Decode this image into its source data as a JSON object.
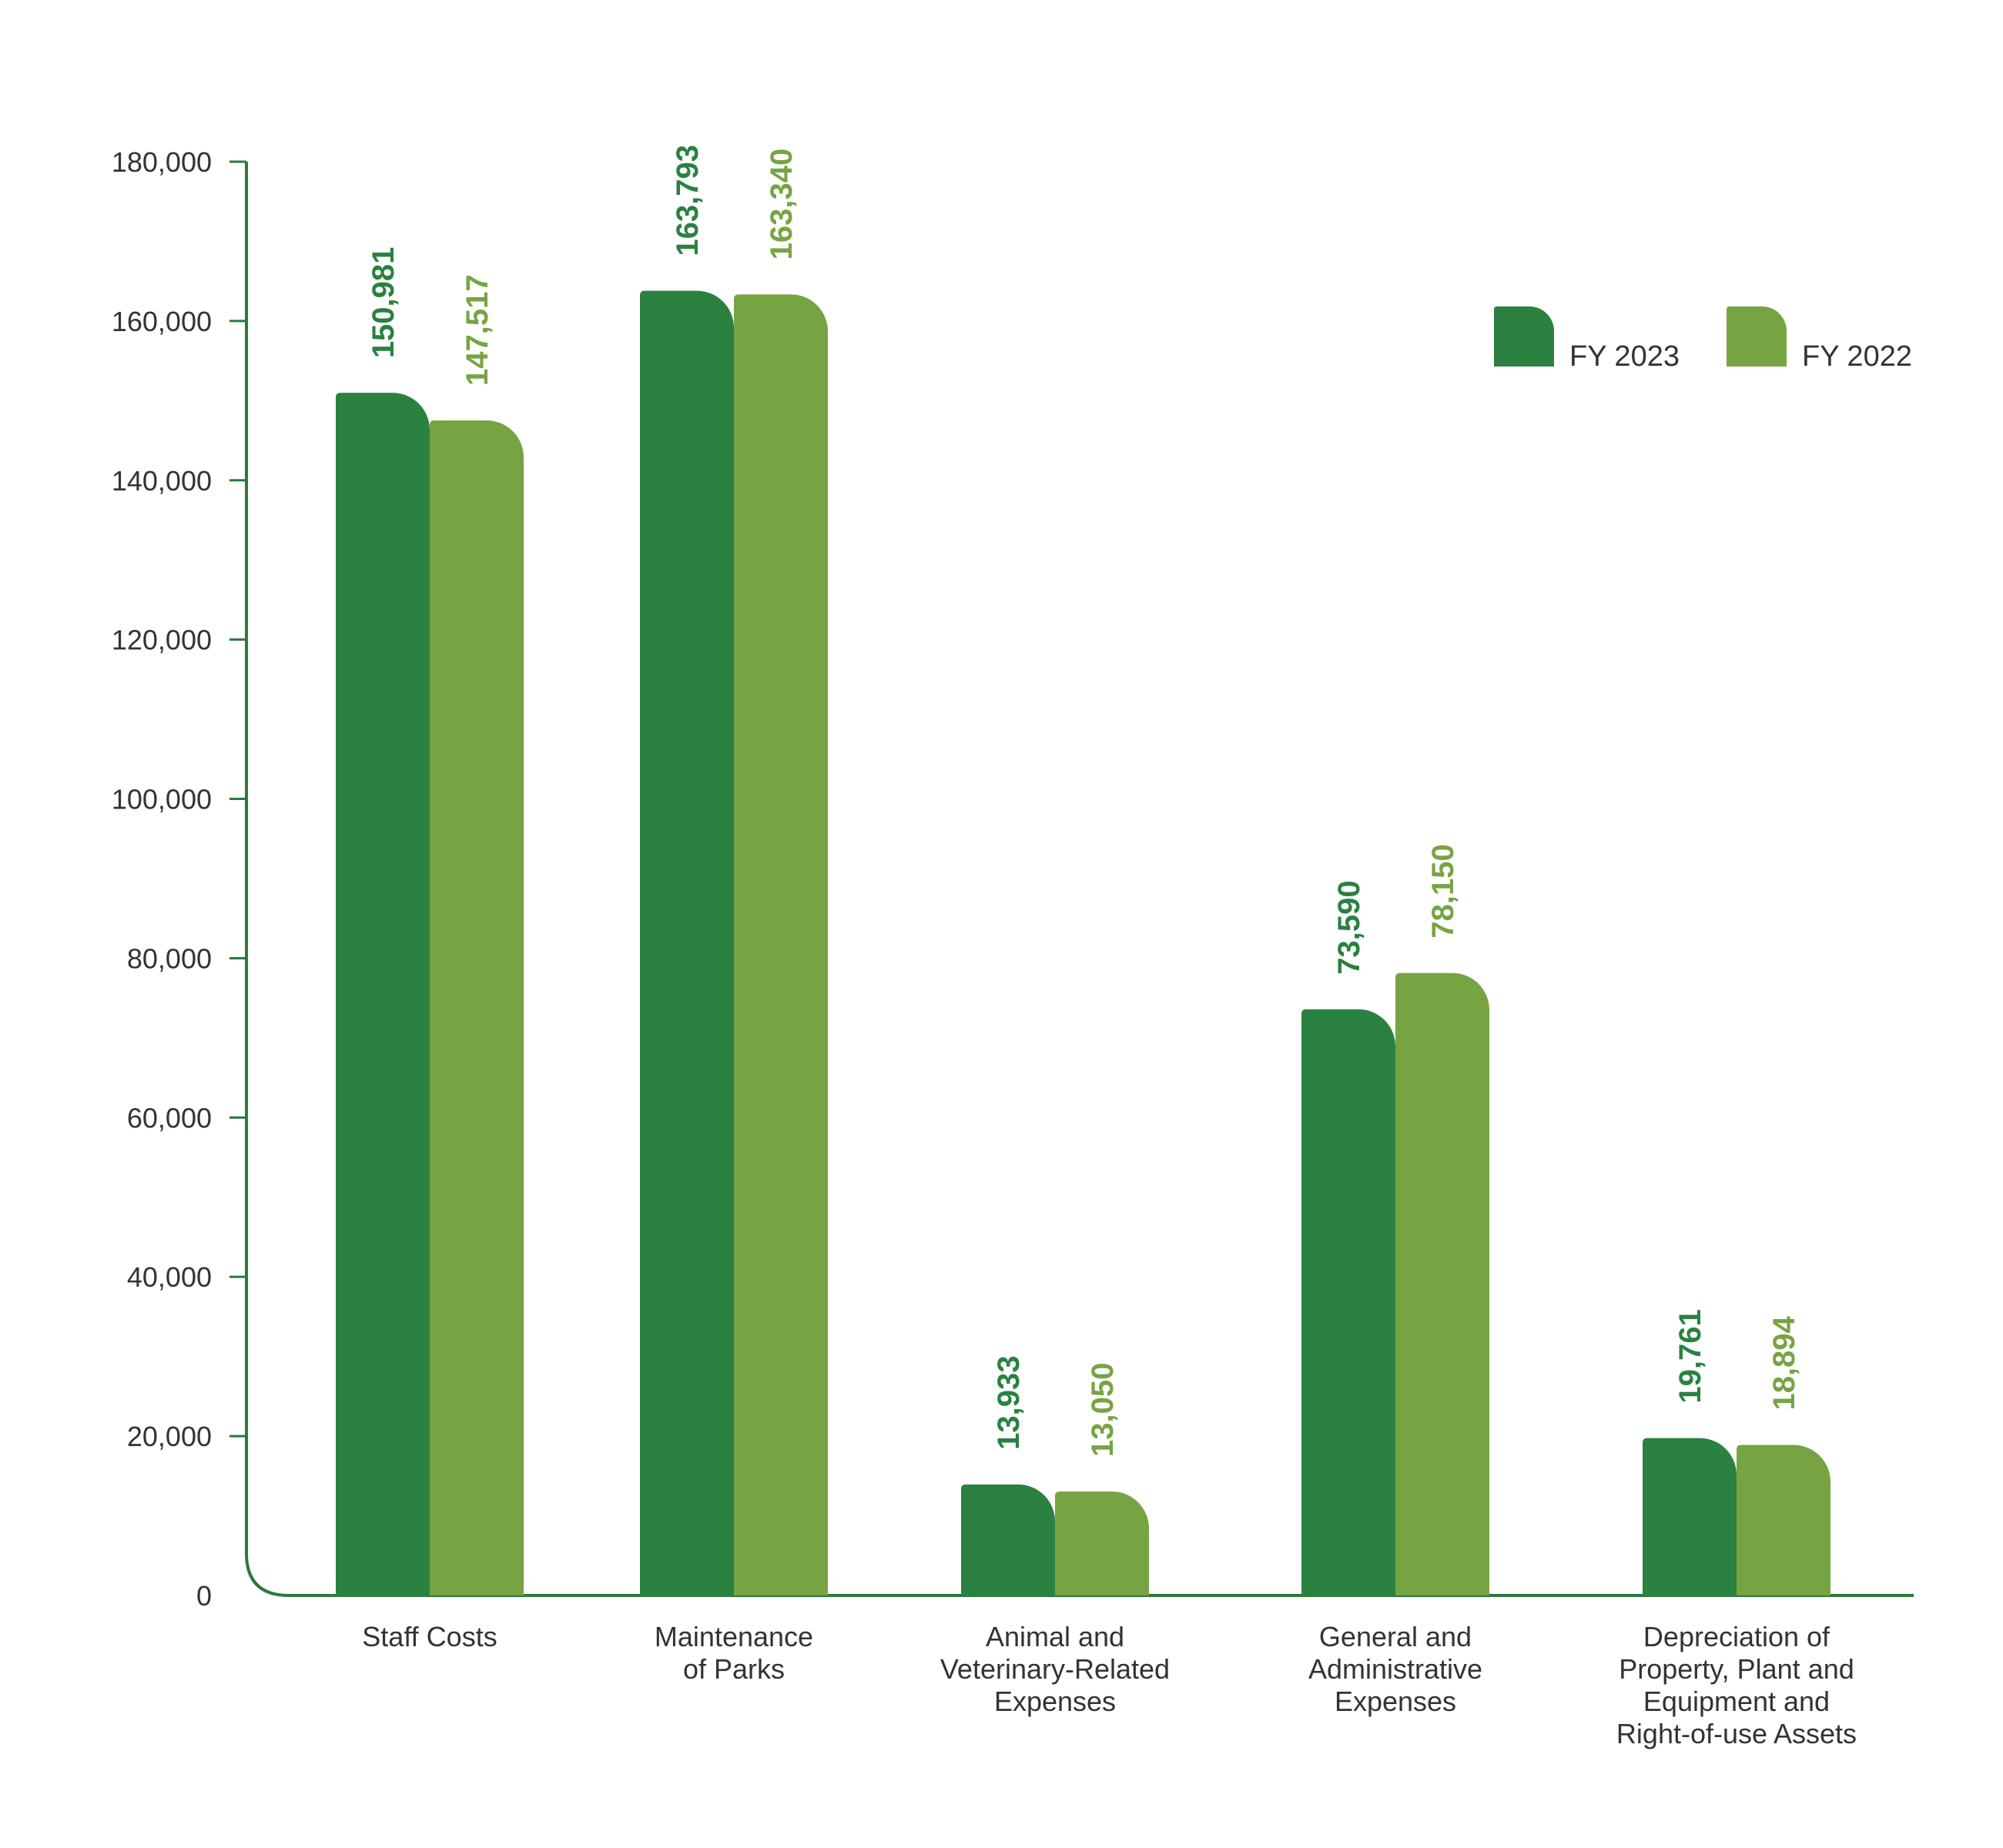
{
  "chart_data": {
    "type": "bar",
    "title": "",
    "xlabel": "",
    "ylabel": "",
    "ylim": [
      0,
      180000
    ],
    "yticks": [
      0,
      20000,
      40000,
      60000,
      80000,
      100000,
      120000,
      140000,
      160000,
      180000
    ],
    "ytick_labels": [
      "0",
      "20,000",
      "40,000",
      "60,000",
      "80,000",
      "100,000",
      "120,000",
      "140,000",
      "160,000",
      "180,000"
    ],
    "grid": false,
    "legend_position": "top-right",
    "categories": [
      [
        "Staff Costs"
      ],
      [
        "Maintenance",
        "of Parks"
      ],
      [
        "Animal and",
        "Veterinary-Related",
        "Expenses"
      ],
      [
        "General and",
        "Administrative",
        "Expenses"
      ],
      [
        "Depreciation of",
        "Property, Plant and",
        "Equipment and",
        "Right-of-use Assets"
      ]
    ],
    "series": [
      {
        "name": "FY 2023",
        "color": "#2a8140",
        "values": [
          150981,
          163793,
          13933,
          73590,
          19761
        ],
        "labels": [
          "150,981",
          "163,793",
          "13,933",
          "73,590",
          "19,761"
        ]
      },
      {
        "name": "FY 2022",
        "color": "#76a442",
        "values": [
          147517,
          163340,
          13050,
          78150,
          18894
        ],
        "labels": [
          "147,517",
          "163,340",
          "13,050",
          "78,150",
          "18,894"
        ]
      }
    ],
    "axis_color": "#2a7a3a"
  }
}
